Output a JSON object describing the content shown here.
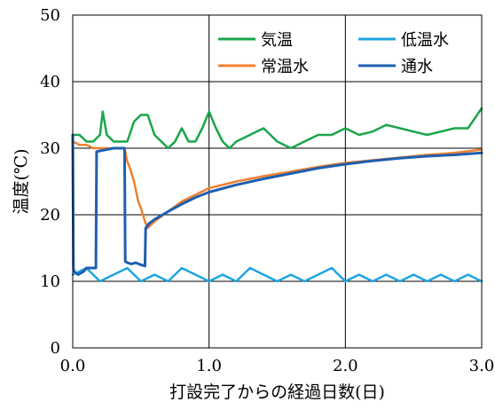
{
  "chart_data": {
    "type": "line",
    "xlabel": "打設完了からの経過日数(日)",
    "ylabel": "温度(℃)",
    "xlim": [
      0,
      3
    ],
    "ylim": [
      0,
      50
    ],
    "x_ticks": [
      "0.0",
      "1.0",
      "2.0",
      "3.0"
    ],
    "y_ticks": [
      "0",
      "10",
      "20",
      "30",
      "40",
      "50"
    ],
    "grid": true,
    "legend_position": "top-right",
    "series": [
      {
        "name": "気温",
        "color": "#1aa64a",
        "x": [
          0.0,
          0.05,
          0.1,
          0.15,
          0.2,
          0.22,
          0.25,
          0.3,
          0.35,
          0.4,
          0.45,
          0.5,
          0.55,
          0.6,
          0.65,
          0.7,
          0.75,
          0.8,
          0.85,
          0.9,
          0.95,
          1.0,
          1.05,
          1.1,
          1.15,
          1.2,
          1.3,
          1.4,
          1.5,
          1.6,
          1.7,
          1.8,
          1.9,
          2.0,
          2.1,
          2.2,
          2.3,
          2.4,
          2.5,
          2.6,
          2.7,
          2.8,
          2.9,
          3.0
        ],
        "y": [
          32,
          32,
          31,
          31,
          32,
          35.5,
          32,
          31,
          31,
          31,
          34,
          35,
          35,
          32,
          31,
          30,
          31,
          33,
          31,
          31,
          33,
          35.5,
          33,
          31,
          30,
          31,
          32,
          33,
          31,
          30,
          31,
          32,
          32,
          33,
          32,
          32.5,
          33.5,
          33,
          32.5,
          32,
          32.5,
          33,
          33,
          36
        ]
      },
      {
        "name": "低温水",
        "color": "#1fa4e0",
        "x": [
          0.0,
          0.1,
          0.2,
          0.3,
          0.4,
          0.5,
          0.6,
          0.7,
          0.8,
          0.9,
          1.0,
          1.1,
          1.2,
          1.3,
          1.4,
          1.5,
          1.6,
          1.7,
          1.8,
          1.9,
          2.0,
          2.1,
          2.2,
          2.3,
          2.4,
          2.5,
          2.6,
          2.7,
          2.8,
          2.9,
          3.0
        ],
        "y": [
          11,
          12,
          10,
          11,
          12,
          10,
          11,
          10,
          12,
          11,
          10,
          11,
          10,
          12,
          11,
          10,
          11,
          10,
          11,
          12,
          10,
          11,
          10,
          11,
          10,
          11,
          10,
          11,
          10,
          11,
          10
        ]
      },
      {
        "name": "常温水",
        "color": "#f08030",
        "x": [
          0.0,
          0.05,
          0.1,
          0.15,
          0.2,
          0.25,
          0.3,
          0.35,
          0.38,
          0.4,
          0.42,
          0.45,
          0.48,
          0.5,
          0.53,
          0.55,
          0.6,
          0.7,
          0.8,
          0.9,
          1.0,
          1.2,
          1.4,
          1.6,
          1.8,
          2.0,
          2.2,
          2.4,
          2.6,
          2.8,
          3.0
        ],
        "y": [
          31,
          30.5,
          30.5,
          30,
          30,
          30,
          30,
          30,
          30,
          28,
          27,
          25,
          22,
          21,
          19,
          18,
          19,
          20.5,
          22,
          23,
          24,
          25,
          25.8,
          26.5,
          27.2,
          27.8,
          28.2,
          28.6,
          29,
          29.3,
          29.8
        ]
      },
      {
        "name": "通水",
        "color": "#1e5fb0",
        "x": [
          0.0,
          0.005,
          0.01,
          0.04,
          0.08,
          0.1,
          0.14,
          0.17,
          0.175,
          0.2,
          0.25,
          0.3,
          0.35,
          0.38,
          0.385,
          0.4,
          0.43,
          0.46,
          0.5,
          0.53,
          0.535,
          0.56,
          0.6,
          0.7,
          0.8,
          0.9,
          1.0,
          1.2,
          1.4,
          1.6,
          1.8,
          2.0,
          2.2,
          2.4,
          2.6,
          2.8,
          3.0
        ],
        "y": [
          32,
          12,
          11.5,
          11,
          11.5,
          12,
          12,
          12,
          29.5,
          29.6,
          29.8,
          30,
          30,
          30,
          13,
          12.8,
          12.6,
          12.8,
          12.5,
          12.3,
          18,
          18.7,
          19.3,
          20.5,
          21.6,
          22.6,
          23.4,
          24.5,
          25.4,
          26.2,
          27,
          27.6,
          28.1,
          28.5,
          28.8,
          29,
          29.3
        ]
      }
    ]
  }
}
